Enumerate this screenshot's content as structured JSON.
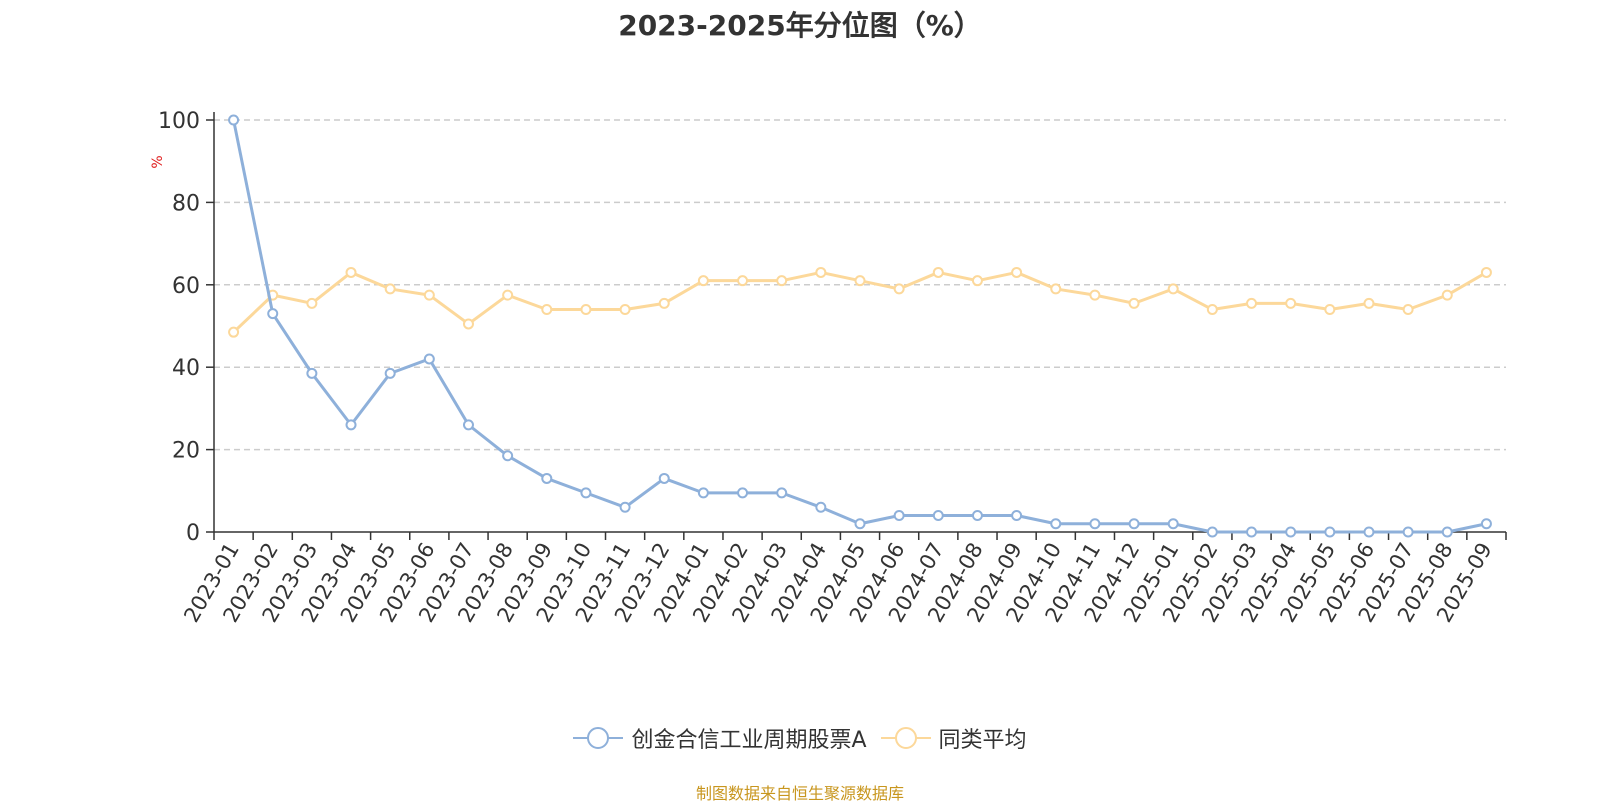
{
  "chart_data": {
    "type": "line",
    "title": "2023-2025年分位图（%）",
    "xlabel": "",
    "ylabel": "%",
    "ylim": [
      0,
      100
    ],
    "yticks": [
      0,
      20,
      40,
      60,
      80,
      100
    ],
    "grid": true,
    "legend_position": "bottom-center",
    "categories": [
      "2023-01",
      "2023-02",
      "2023-03",
      "2023-04",
      "2023-05",
      "2023-06",
      "2023-07",
      "2023-08",
      "2023-09",
      "2023-10",
      "2023-11",
      "2023-12",
      "2024-01",
      "2024-02",
      "2024-03",
      "2024-04",
      "2024-05",
      "2024-06",
      "2024-07",
      "2024-08",
      "2024-09",
      "2024-10",
      "2024-11",
      "2024-12",
      "2025-01",
      "2025-02",
      "2025-03",
      "2025-04",
      "2025-05",
      "2025-06",
      "2025-07",
      "2025-08",
      "2025-09"
    ],
    "series": [
      {
        "name": "创金合信工业周期股票A",
        "color": "#8eb0da",
        "values": [
          100,
          53,
          38.5,
          26,
          38.5,
          42,
          26,
          18.5,
          13,
          9.5,
          6,
          13,
          9.5,
          9.5,
          9.5,
          6,
          2,
          4,
          4,
          4,
          4,
          2,
          2,
          2,
          2,
          0,
          0,
          0,
          0,
          0,
          0,
          0,
          2
        ]
      },
      {
        "name": "同类平均",
        "color": "#fcd89a",
        "values": [
          48.5,
          57.5,
          55.5,
          63,
          59,
          57.5,
          50.5,
          57.5,
          54,
          54,
          54,
          55.5,
          61,
          61,
          61,
          63,
          61,
          59,
          63,
          61,
          63,
          59,
          57.5,
          55.5,
          59,
          54,
          55.5,
          55.5,
          54,
          55.5,
          54,
          57.5,
          63
        ]
      }
    ]
  },
  "source_note": "制图数据来自恒生聚源数据库"
}
